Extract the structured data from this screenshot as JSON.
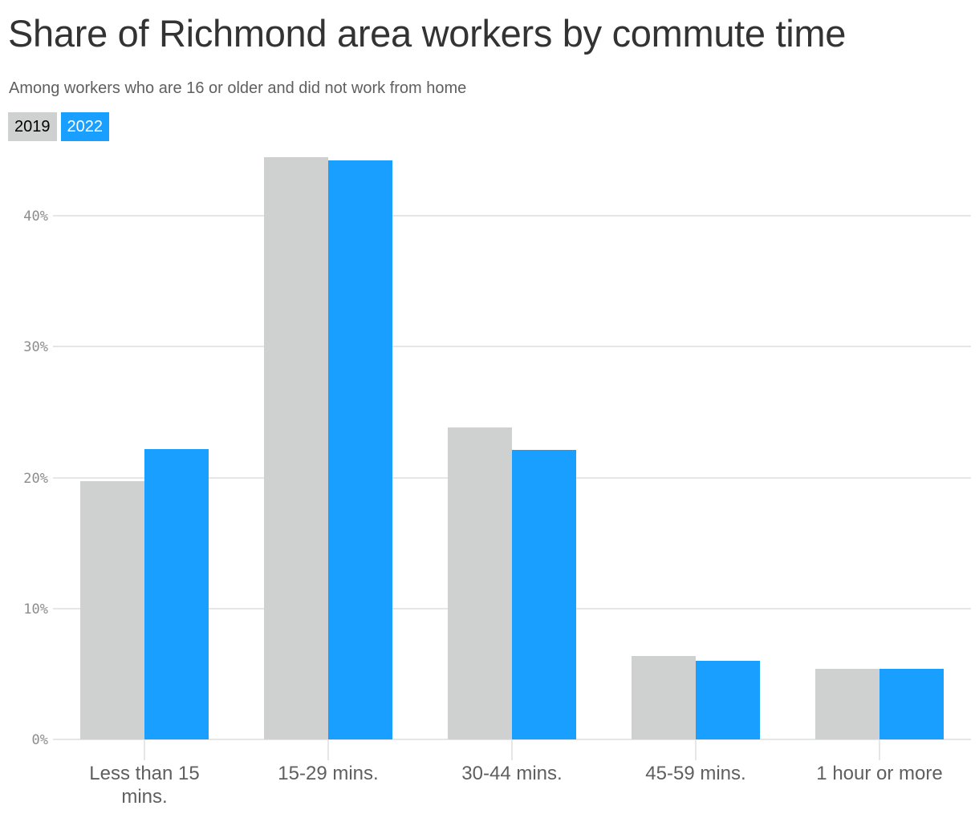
{
  "title": "Share of Richmond area workers by commute time",
  "subtitle": "Among workers who are 16 or older and did not work from home",
  "legend": [
    {
      "label": "2019",
      "color": "#cfd1d0",
      "text_color": "#000000"
    },
    {
      "label": "2022",
      "color": "#189fff",
      "text_color": "#ffffff"
    }
  ],
  "y_axis": {
    "ticks": [
      "0%",
      "10%",
      "20%",
      "30%",
      "40%"
    ]
  },
  "x_axis": {
    "labels": [
      "Less than 15 mins.",
      "15-29 mins.",
      "30-44 mins.",
      "45-59 mins.",
      "1 hour or more"
    ]
  },
  "chart_data": {
    "type": "bar",
    "title": "Share of Richmond area workers by commute time",
    "subtitle": "Among workers who are 16 or older and did not work from home",
    "categories": [
      "Less than 15 mins.",
      "15-29 mins.",
      "30-44 mins.",
      "45-59 mins.",
      "1 hour or more"
    ],
    "series": [
      {
        "name": "2019",
        "color": "#cfd1d0",
        "values": [
          19.7,
          44.5,
          23.8,
          6.4,
          5.4
        ]
      },
      {
        "name": "2022",
        "color": "#189fff",
        "values": [
          22.2,
          44.2,
          22.1,
          6.0,
          5.4
        ]
      }
    ],
    "xlabel": "",
    "ylabel": "",
    "ylim": [
      0,
      45
    ],
    "yticks": [
      0,
      10,
      20,
      30,
      40
    ],
    "ytick_format": "percent",
    "grid": true,
    "legend_position": "top-left"
  }
}
